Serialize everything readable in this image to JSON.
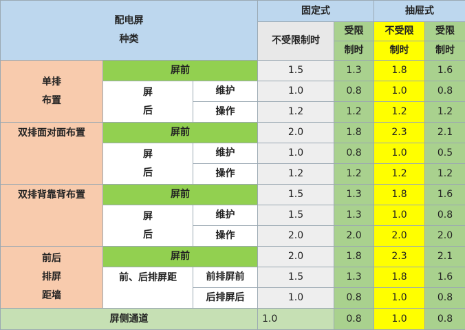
{
  "header": {
    "type_label_line1": "配电屏",
    "type_label_line2": "种类",
    "fixed": "固定式",
    "drawer": "抽屉式",
    "unlimited": "不受限制时",
    "limited_line1": "受限",
    "limited_line2": "制时",
    "drawer_unlimited_line1": "不受限",
    "drawer_unlimited_line2": "制时",
    "drawer_limited_line1": "受限",
    "drawer_limited_line2": "制时"
  },
  "labels": {
    "screen_front": "屏前",
    "screen_back_1": "屏",
    "screen_back_2": "后",
    "maintain": "维护",
    "operate": "操作",
    "front_back_screen_dist": "前、后排屏距",
    "front_row_screen_front": "前排屏前",
    "back_row_screen_back": "后排屏后"
  },
  "groups": [
    {
      "name_line1": "单排",
      "name_line2": "布置"
    },
    {
      "name_line1": "双排面对面布置"
    },
    {
      "name_line1": "双排背靠背布置"
    },
    {
      "name_line1": "前后",
      "name_line2": "排屏",
      "name_line3": "距墙"
    }
  ],
  "rows": [
    [
      "1.5",
      "1.3",
      "1.8",
      "1.6"
    ],
    [
      "1.0",
      "0.8",
      "1.0",
      "0.8"
    ],
    [
      "1.2",
      "1.2",
      "1.2",
      "1.2"
    ],
    [
      "2.0",
      "1.8",
      "2.3",
      "2.1"
    ],
    [
      "1.0",
      "0.8",
      "1.0",
      "0.5"
    ],
    [
      "1.2",
      "1.2",
      "1.2",
      "1.2"
    ],
    [
      "1.5",
      "1.3",
      "1.8",
      "1.6"
    ],
    [
      "1.5",
      "1.3",
      "1.0",
      "0.8"
    ],
    [
      "2.0",
      "2.0",
      "2.0",
      "2.0"
    ],
    [
      "2.0",
      "1.8",
      "2.3",
      "2.1"
    ],
    [
      "1.5",
      "1.3",
      "1.8",
      "1.6"
    ],
    [
      "1.0",
      "0.8",
      "1.0",
      "0.8"
    ]
  ],
  "aisle": {
    "label": "屏侧通道",
    "values": [
      "1.0",
      "0.8",
      "1.0",
      "0.8"
    ]
  },
  "colors": {
    "header_blue": "#bdd7ee",
    "salmon": "#f8cbad",
    "bright_green": "#92d050",
    "light_green": "#a9d18e",
    "yellow": "#ffff00",
    "gray": "#eeeeee",
    "aisle_green": "#c6e0b4"
  }
}
